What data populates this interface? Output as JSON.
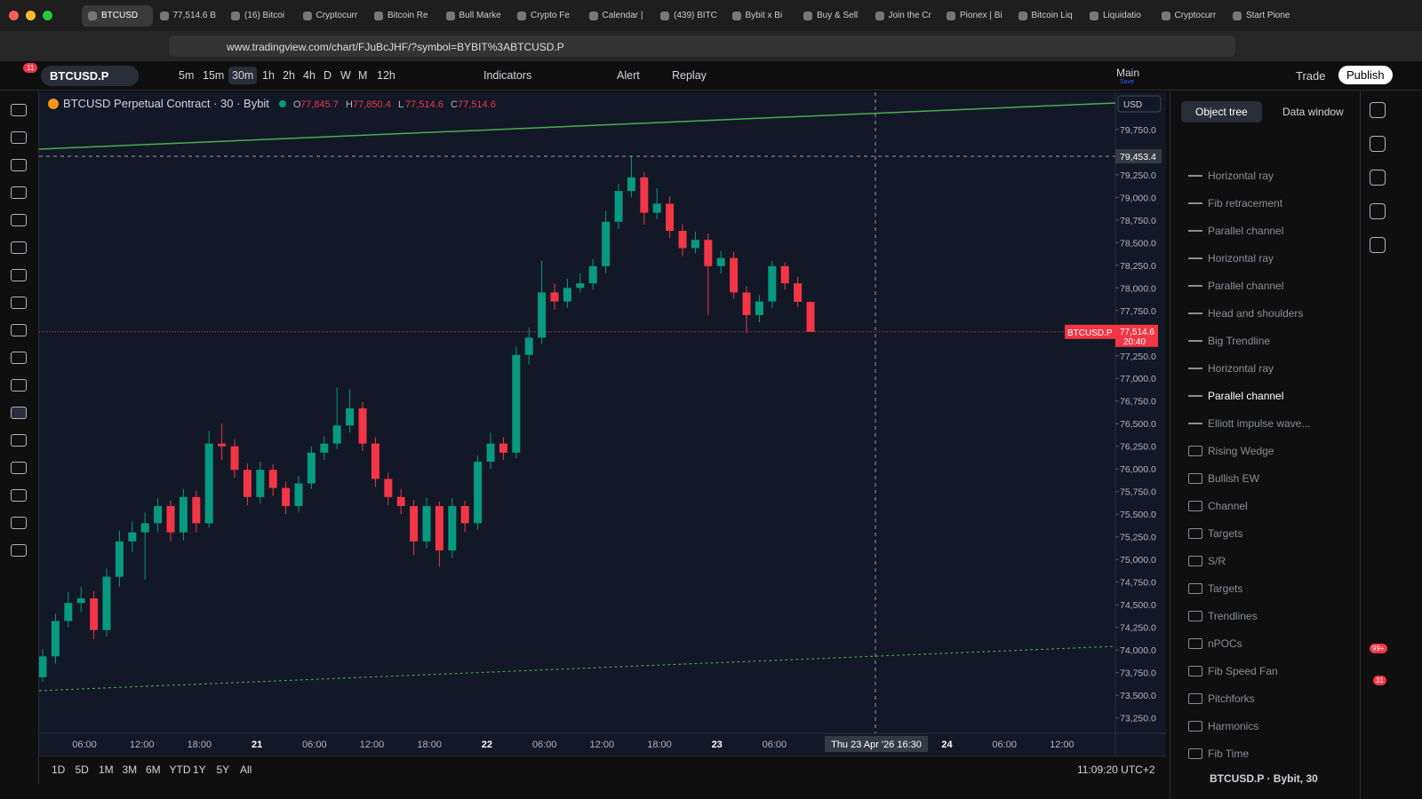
{
  "browser": {
    "tabs": [
      "BTCUSD",
      "77,514.6 B",
      "(16) Bitcoi",
      "Cryptocurr",
      "Bitcoin Re",
      "Bull Marke",
      "Crypto Fe",
      "Calendar |",
      "(439) BITC",
      "Bybit x Bi",
      "Buy & Sell",
      "Join the Cr",
      "Pionex | Bi",
      "Bitcoin Liq",
      "Liquidatio",
      "Cryptocurr",
      "Start Pione"
    ],
    "url": "www.tradingview.com/chart/FJuBcJHF/?symbol=BYBIT%3ABTCUSD.P"
  },
  "toolbar": {
    "badge": "11",
    "symbol": "BTCUSD.P",
    "intervals": [
      "5m",
      "15m",
      "30m",
      "1h",
      "2h",
      "4h",
      "D",
      "W",
      "M",
      "12h"
    ],
    "active_interval": "30m",
    "indicators": "Indicators",
    "alert": "Alert",
    "replay": "Replay",
    "layout": "Main",
    "save": "Save",
    "trade": "Trade",
    "publish": "Publish"
  },
  "chart_data": {
    "type": "candlestick",
    "title": "BTCUSD Perpetual Contract · 30 · Bybit",
    "currency": "USD",
    "ohlc_header": [
      {
        "key": "O",
        "value": 77845.7,
        "label": "77,845.7"
      },
      {
        "key": "H",
        "value": 77850.4,
        "label": "77,850.4"
      },
      {
        "key": "L",
        "value": 77514.6,
        "label": "77,514.6"
      },
      {
        "key": "C",
        "value": 77514.6,
        "label": "77,514.6"
      }
    ],
    "up_color": "#089981",
    "down_color": "#f23645",
    "x_labels": [
      "06:00",
      "12:00",
      "18:00",
      "21",
      "06:00",
      "12:00",
      "18:00",
      "22",
      "06:00",
      "12:00",
      "18:00",
      "23",
      "06:00",
      null,
      null,
      "24",
      "06:00",
      "12:00"
    ],
    "candles": [
      [
        73700,
        74010,
        73650,
        73930
      ],
      [
        73930,
        74400,
        73850,
        74320
      ],
      [
        74320,
        74640,
        74250,
        74520
      ],
      [
        74520,
        74700,
        74420,
        74570
      ],
      [
        74570,
        74650,
        74120,
        74220
      ],
      [
        74220,
        74900,
        74150,
        74810
      ],
      [
        74810,
        75320,
        74700,
        75200
      ],
      [
        75200,
        75420,
        75080,
        75300
      ],
      [
        75300,
        75520,
        74780,
        75400
      ],
      [
        75400,
        75680,
        75300,
        75590
      ],
      [
        75590,
        75650,
        75200,
        75300
      ],
      [
        75300,
        75780,
        75210,
        75690
      ],
      [
        75690,
        75760,
        75300,
        75400
      ],
      [
        75400,
        76420,
        75350,
        76280
      ],
      [
        76280,
        76500,
        76100,
        76250
      ],
      [
        76250,
        76330,
        75900,
        75990
      ],
      [
        75990,
        76060,
        75600,
        75690
      ],
      [
        75690,
        76080,
        75620,
        75990
      ],
      [
        75990,
        76050,
        75700,
        75790
      ],
      [
        75790,
        75860,
        75500,
        75590
      ],
      [
        75590,
        75920,
        75520,
        75840
      ],
      [
        75840,
        76250,
        75780,
        76180
      ],
      [
        76180,
        76360,
        76100,
        76280
      ],
      [
        76280,
        76900,
        76220,
        76480
      ],
      [
        76480,
        76880,
        76400,
        76670
      ],
      [
        76670,
        76740,
        76200,
        76280
      ],
      [
        76280,
        76350,
        75800,
        75890
      ],
      [
        75890,
        75960,
        75600,
        75690
      ],
      [
        75690,
        75780,
        75500,
        75590
      ],
      [
        75590,
        75660,
        75050,
        75200
      ],
      [
        75200,
        75680,
        75120,
        75590
      ],
      [
        75590,
        75640,
        74920,
        75100
      ],
      [
        75100,
        75680,
        75020,
        75590
      ],
      [
        75590,
        75650,
        75300,
        75400
      ],
      [
        75400,
        76150,
        75330,
        76080
      ],
      [
        76080,
        76400,
        76000,
        76280
      ],
      [
        76280,
        76350,
        76100,
        76180
      ],
      [
        76180,
        77350,
        76120,
        77260
      ],
      [
        77260,
        77560,
        77150,
        77450
      ],
      [
        77450,
        78300,
        77380,
        77950
      ],
      [
        77950,
        78050,
        77760,
        77850
      ],
      [
        77850,
        78100,
        77780,
        78000
      ],
      [
        78000,
        78160,
        77950,
        78050
      ],
      [
        78050,
        78320,
        77980,
        78240
      ],
      [
        78240,
        78850,
        78160,
        78730
      ],
      [
        78730,
        79150,
        78650,
        79070
      ],
      [
        79070,
        79460,
        79000,
        79220
      ],
      [
        79220,
        79280,
        78700,
        78830
      ],
      [
        78830,
        79100,
        78760,
        78930
      ],
      [
        78930,
        79010,
        78550,
        78630
      ],
      [
        78630,
        78700,
        78350,
        78440
      ],
      [
        78440,
        78620,
        78380,
        78530
      ],
      [
        78530,
        78600,
        77700,
        78240
      ],
      [
        78240,
        78410,
        78160,
        78330
      ],
      [
        78330,
        78400,
        77880,
        77950
      ],
      [
        77950,
        78020,
        77500,
        77700
      ],
      [
        77700,
        77920,
        77620,
        77850
      ],
      [
        77850,
        78300,
        77780,
        78240
      ],
      [
        78240,
        78280,
        77980,
        78050
      ],
      [
        78050,
        78120,
        77790,
        77846
      ],
      [
        77845.7,
        77850.4,
        77514.6,
        77514.6
      ]
    ],
    "ylim": [
      73080,
      80160
    ],
    "yticks": [
      {
        "value": 79750,
        "label": "79,750.0"
      },
      {
        "value": 79250,
        "label": "79,250.0"
      },
      {
        "value": 79000,
        "label": "79,000.0"
      },
      {
        "value": 78750,
        "label": "78,750.0"
      },
      {
        "value": 78500,
        "label": "78,500.0"
      },
      {
        "value": 78250,
        "label": "78,250.0"
      },
      {
        "value": 78000,
        "label": "78,000.0"
      },
      {
        "value": 77750,
        "label": "77,750.0"
      },
      {
        "value": 77250,
        "label": "77,250.0"
      },
      {
        "value": 77000,
        "label": "77,000.0"
      },
      {
        "value": 76750,
        "label": "76,750.0"
      },
      {
        "value": 76500,
        "label": "76,500.0"
      },
      {
        "value": 76250,
        "label": "76,250.0"
      },
      {
        "value": 76000,
        "label": "76,000.0"
      },
      {
        "value": 75750,
        "label": "75,750.0"
      },
      {
        "value": 75500,
        "label": "75,500.0"
      },
      {
        "value": 75250,
        "label": "75,250.0"
      },
      {
        "value": 75000,
        "label": "75,000.0"
      },
      {
        "value": 74750,
        "label": "74,750.0"
      },
      {
        "value": 74500,
        "label": "74,500.0"
      },
      {
        "value": 74250,
        "label": "74,250.0"
      },
      {
        "value": 74000,
        "label": "74,000.0"
      },
      {
        "value": 73750,
        "label": "73,750.0"
      },
      {
        "value": 73500,
        "label": "73,500.0"
      },
      {
        "value": 73250,
        "label": "73,250.0"
      }
    ],
    "crosshair_price": {
      "value": 79453.4,
      "label": "79,453.4"
    },
    "crosshair_time": "Thu 23 Apr '26  16:30",
    "last_price": {
      "symbol": "BTCUSD.P",
      "value": 77514.6,
      "label": "77,514.6",
      "countdown": "20:40"
    }
  },
  "bottom": {
    "ranges": [
      "1D",
      "5D",
      "1M",
      "3M",
      "6M",
      "YTD",
      "1Y",
      "5Y",
      "All"
    ],
    "clock": "11:09:20 UTC+2"
  },
  "object_tree": {
    "tabs": [
      "Object tree",
      "Data window"
    ],
    "items": [
      "Horizontal ray",
      "Fib retracement",
      "Parallel channel",
      "Horizontal ray",
      "Parallel channel",
      "Head and shoulders",
      "Big Trendline",
      "Horizontal ray",
      "Parallel channel",
      "Elliott impulse wave..."
    ],
    "active_item": 8,
    "folders": [
      "Rising Wedge",
      "Bullish EW",
      "Channel",
      "Targets",
      "S/R",
      "Targets",
      "Trendlines",
      "nPOCs",
      "Fib Speed Fan",
      "Pitchforks",
      "Harmonics",
      "Fib Time"
    ],
    "footer": "BTCUSD.P · Bybit, 30"
  },
  "sidebar": {
    "badges": [
      "99+",
      "31"
    ]
  }
}
